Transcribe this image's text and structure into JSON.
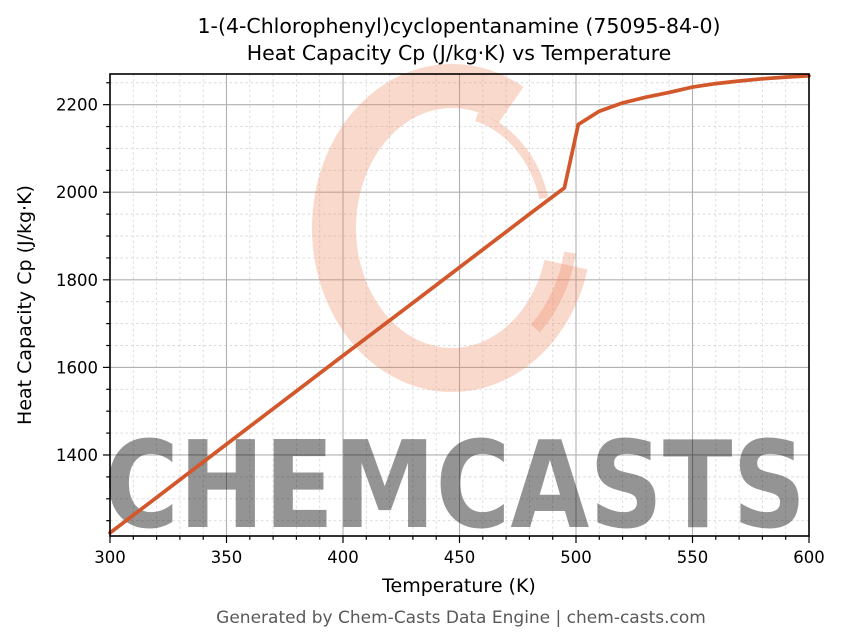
{
  "chart_data": {
    "type": "line",
    "title": "1-(4-Chlorophenyl)cyclopentanamine (75095-84-0)",
    "subtitle": "Heat Capacity Cp (J/kg·K) vs Temperature",
    "xlabel": "Temperature (K)",
    "ylabel": "Heat Capacity Cp (J/kg·K)",
    "xlim": [
      300,
      600
    ],
    "ylim": [
      1215,
      2270
    ],
    "xticks": [
      300,
      350,
      400,
      450,
      500,
      550,
      600
    ],
    "yticks": [
      1400,
      1600,
      1800,
      2000,
      2200
    ],
    "x_minor_step": 10,
    "y_minor_step": 50,
    "grid": "major solid, minor dashed",
    "legend": "none",
    "series": [
      {
        "name": "Heat Capacity Cp (J/kg·K)",
        "color": "#d2572b",
        "points": [
          [
            300,
            1222
          ],
          [
            320,
            1303
          ],
          [
            340,
            1384
          ],
          [
            360,
            1465
          ],
          [
            380,
            1546
          ],
          [
            400,
            1627
          ],
          [
            420,
            1707
          ],
          [
            440,
            1788
          ],
          [
            460,
            1869
          ],
          [
            480,
            1950
          ],
          [
            495,
            2010
          ],
          [
            501,
            2155
          ],
          [
            510,
            2185
          ],
          [
            520,
            2204
          ],
          [
            530,
            2217
          ],
          [
            540,
            2228
          ],
          [
            550,
            2240
          ],
          [
            560,
            2248
          ],
          [
            570,
            2254
          ],
          [
            580,
            2259
          ],
          [
            590,
            2263
          ],
          [
            600,
            2266
          ]
        ]
      }
    ],
    "colors": {
      "line": "#d2572b",
      "grid_major": "#b0b0b0",
      "grid_minor": "#d9d9d9",
      "axis_text": "#000000"
    }
  },
  "watermark": {
    "text": "CHEMCASTS",
    "logo": "chemcasts-brush-ring",
    "color": "#ee8a65"
  },
  "footer": {
    "text": "Generated by Chem-Casts Data Engine | chem-casts.com",
    "color": "#595959"
  }
}
